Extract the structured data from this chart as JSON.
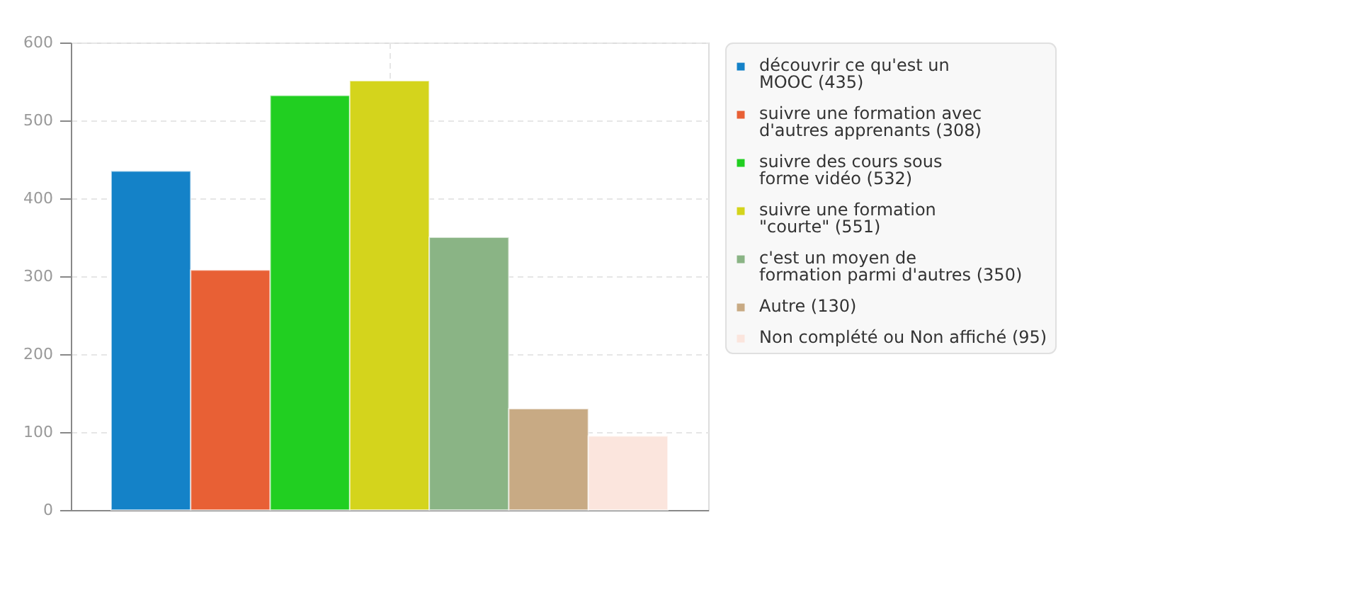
{
  "chart_data": {
    "type": "bar",
    "categories": [
      null
    ],
    "series": [
      {
        "name": "découvrir ce qu'est un MOOC (435)",
        "color": "#1482c8",
        "values": [
          435
        ]
      },
      {
        "name": "suivre une formation avec d'autres apprenants (308)",
        "color": "#e86035",
        "values": [
          308
        ]
      },
      {
        "name": "suivre des cours sous forme vidéo (532)",
        "color": "#21cf21",
        "values": [
          532
        ]
      },
      {
        "name": "suivre une formation \"courte\" (551)",
        "color": "#d4d41c",
        "values": [
          551
        ]
      },
      {
        "name": "c'est un moyen de formation parmi d'autres (350)",
        "color": "#8ab485",
        "values": [
          350
        ]
      },
      {
        "name": "Autre (130)",
        "color": "#c8aa84",
        "values": [
          130
        ]
      },
      {
        "name": "Non complété ou Non affiché (95)",
        "color": "#fbe5dd",
        "values": [
          95
        ]
      }
    ],
    "ylim": [
      0,
      600
    ],
    "yticks": [
      0,
      100,
      200,
      300,
      400,
      500,
      600
    ],
    "grid": true,
    "legend": "right"
  }
}
